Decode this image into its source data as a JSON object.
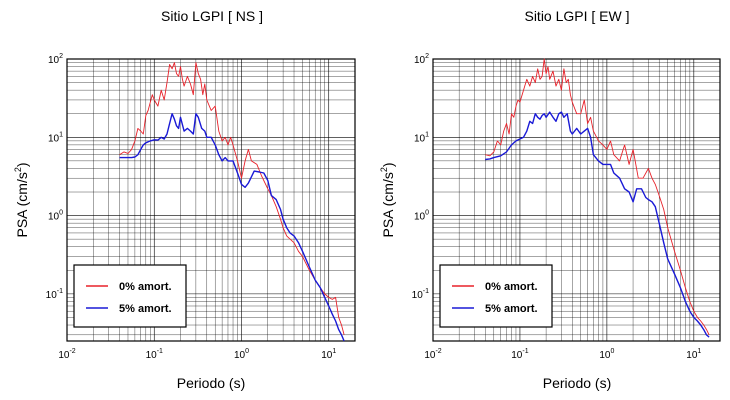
{
  "chart_data": [
    {
      "type": "line",
      "title": "Sitio LGPI [ NS ]",
      "xlabel": "Periodo (s)",
      "ylabel_prefix": "PSA (cm/s",
      "ylabel_exp": "2",
      "ylabel_suffix": ")",
      "xscale": "log",
      "yscale": "log",
      "xlim": [
        0.01,
        20
      ],
      "ylim": [
        0.025,
        100
      ],
      "grid": true,
      "legend_position": "lower-left",
      "x_ticks": [
        {
          "base": "10",
          "exp": "-2",
          "value": 0.01
        },
        {
          "base": "10",
          "exp": "-1",
          "value": 0.1
        },
        {
          "base": "10",
          "exp": "0",
          "value": 1
        },
        {
          "base": "10",
          "exp": "1",
          "value": 10
        }
      ],
      "y_ticks": [
        {
          "base": "10",
          "exp": "-1",
          "value": 0.1
        },
        {
          "base": "10",
          "exp": "0",
          "value": 1
        },
        {
          "base": "10",
          "exp": "1",
          "value": 10
        },
        {
          "base": "10",
          "exp": "2",
          "value": 100
        }
      ],
      "series": [
        {
          "name": "0% amort.",
          "color": "#e8222a",
          "x": [
            0.04,
            0.045,
            0.05,
            0.055,
            0.06,
            0.065,
            0.07,
            0.075,
            0.08,
            0.085,
            0.09,
            0.095,
            0.1,
            0.11,
            0.12,
            0.13,
            0.14,
            0.15,
            0.16,
            0.17,
            0.18,
            0.19,
            0.2,
            0.21,
            0.22,
            0.24,
            0.26,
            0.28,
            0.3,
            0.32,
            0.34,
            0.36,
            0.38,
            0.4,
            0.45,
            0.5,
            0.55,
            0.6,
            0.65,
            0.7,
            0.75,
            0.8,
            0.9,
            1.0,
            1.1,
            1.2,
            1.3,
            1.5,
            1.7,
            2.0,
            2.2,
            2.5,
            2.8,
            3.0,
            3.3,
            3.6,
            4.0,
            4.5,
            5,
            6,
            7,
            8,
            9,
            10,
            11,
            12,
            13,
            14,
            15
          ],
          "y": [
            6,
            6.5,
            6.2,
            7,
            9,
            13,
            12,
            11,
            19,
            22,
            28,
            35,
            30,
            25,
            40,
            30,
            50,
            85,
            75,
            90,
            65,
            60,
            80,
            55,
            45,
            60,
            48,
            35,
            90,
            65,
            55,
            35,
            48,
            30,
            22,
            25,
            12,
            9,
            10,
            8,
            10,
            8,
            5,
            3,
            5,
            7,
            5,
            4.5,
            3.2,
            2.2,
            1.8,
            1.3,
            0.9,
            0.7,
            0.55,
            0.5,
            0.45,
            0.35,
            0.3,
            0.2,
            0.15,
            0.12,
            0.1,
            0.09,
            0.085,
            0.09,
            0.05,
            0.04,
            0.03
          ]
        },
        {
          "name": "5% amort.",
          "color": "#1a1ad6",
          "x": [
            0.04,
            0.045,
            0.05,
            0.055,
            0.06,
            0.065,
            0.07,
            0.075,
            0.08,
            0.09,
            0.1,
            0.11,
            0.12,
            0.13,
            0.14,
            0.15,
            0.16,
            0.17,
            0.18,
            0.19,
            0.2,
            0.22,
            0.24,
            0.26,
            0.28,
            0.3,
            0.32,
            0.35,
            0.38,
            0.4,
            0.45,
            0.5,
            0.55,
            0.6,
            0.65,
            0.7,
            0.8,
            0.9,
            1.0,
            1.1,
            1.2,
            1.4,
            1.6,
            1.8,
            2.0,
            2.2,
            2.5,
            2.8,
            3.0,
            3.3,
            3.6,
            4.0,
            4.5,
            5,
            6,
            7,
            8,
            9,
            10,
            11,
            12,
            13,
            14,
            15
          ],
          "y": [
            5.5,
            5.5,
            5.5,
            5.5,
            5.6,
            6,
            7,
            8,
            8.5,
            9,
            9.3,
            9.2,
            10,
            9.5,
            11,
            15,
            20,
            17,
            14,
            13,
            18,
            12,
            13,
            12,
            11,
            20,
            18,
            13,
            12,
            10,
            10,
            8,
            6,
            5,
            5.5,
            5,
            5,
            3.5,
            2.5,
            2.3,
            2.6,
            3.7,
            3.6,
            3.5,
            2.8,
            1.8,
            1.6,
            1.2,
            0.9,
            0.7,
            0.6,
            0.55,
            0.45,
            0.35,
            0.22,
            0.15,
            0.12,
            0.09,
            0.07,
            0.055,
            0.045,
            0.035,
            0.03,
            0.025
          ]
        }
      ]
    },
    {
      "type": "line",
      "title": "Sitio LGPI [ EW ]",
      "xlabel": "Periodo (s)",
      "ylabel_prefix": "PSA (cm/s",
      "ylabel_exp": "2",
      "ylabel_suffix": ")",
      "xscale": "log",
      "yscale": "log",
      "xlim": [
        0.01,
        20
      ],
      "ylim": [
        0.025,
        100
      ],
      "grid": true,
      "legend_position": "lower-left",
      "x_ticks": [
        {
          "base": "10",
          "exp": "-2",
          "value": 0.01
        },
        {
          "base": "10",
          "exp": "-1",
          "value": 0.1
        },
        {
          "base": "10",
          "exp": "0",
          "value": 1
        },
        {
          "base": "10",
          "exp": "1",
          "value": 10
        }
      ],
      "y_ticks": [
        {
          "base": "10",
          "exp": "-1",
          "value": 0.1
        },
        {
          "base": "10",
          "exp": "0",
          "value": 1
        },
        {
          "base": "10",
          "exp": "1",
          "value": 10
        },
        {
          "base": "10",
          "exp": "2",
          "value": 100
        }
      ],
      "series": [
        {
          "name": "0% amort.",
          "color": "#e8222a",
          "x": [
            0.04,
            0.045,
            0.05,
            0.055,
            0.06,
            0.065,
            0.07,
            0.075,
            0.08,
            0.085,
            0.09,
            0.095,
            0.1,
            0.11,
            0.12,
            0.13,
            0.14,
            0.15,
            0.16,
            0.17,
            0.18,
            0.19,
            0.2,
            0.21,
            0.22,
            0.24,
            0.26,
            0.28,
            0.3,
            0.32,
            0.34,
            0.36,
            0.38,
            0.4,
            0.45,
            0.5,
            0.55,
            0.6,
            0.65,
            0.7,
            0.8,
            0.9,
            1.0,
            1.1,
            1.2,
            1.4,
            1.6,
            1.8,
            2.0,
            2.3,
            2.6,
            3.0,
            3.3,
            3.6,
            4.0,
            4.5,
            5,
            6,
            7,
            8,
            9,
            10,
            11,
            12,
            13,
            14,
            15
          ],
          "y": [
            6,
            5.8,
            6.5,
            9,
            8,
            12,
            15,
            11,
            20,
            18,
            25,
            30,
            28,
            40,
            55,
            45,
            60,
            50,
            75,
            55,
            60,
            100,
            65,
            80,
            55,
            70,
            45,
            55,
            40,
            75,
            50,
            55,
            35,
            28,
            20,
            20,
            30,
            15,
            18,
            12,
            9,
            8,
            7,
            9,
            6,
            5,
            8,
            4.5,
            7,
            3,
            3,
            4,
            3,
            2.5,
            1.8,
            1.2,
            0.7,
            0.35,
            0.2,
            0.12,
            0.08,
            0.06,
            0.05,
            0.045,
            0.04,
            0.035,
            0.03
          ]
        },
        {
          "name": "5% amort.",
          "color": "#1a1ad6",
          "x": [
            0.04,
            0.045,
            0.05,
            0.06,
            0.07,
            0.08,
            0.09,
            0.1,
            0.11,
            0.12,
            0.13,
            0.14,
            0.15,
            0.16,
            0.17,
            0.18,
            0.19,
            0.2,
            0.22,
            0.24,
            0.26,
            0.28,
            0.3,
            0.32,
            0.35,
            0.38,
            0.4,
            0.45,
            0.5,
            0.55,
            0.6,
            0.65,
            0.7,
            0.8,
            0.9,
            1.0,
            1.1,
            1.2,
            1.4,
            1.6,
            1.8,
            2.0,
            2.2,
            2.5,
            2.8,
            3.0,
            3.3,
            3.6,
            4.0,
            4.5,
            5,
            6,
            7,
            8,
            9,
            10,
            11,
            12,
            13,
            14,
            15
          ],
          "y": [
            5.2,
            5.3,
            5.5,
            5.8,
            6.5,
            8,
            9,
            9.5,
            10,
            12,
            16,
            15,
            20,
            18,
            17,
            19,
            20,
            18,
            21,
            18,
            16,
            20,
            21,
            18,
            20,
            12,
            11,
            13,
            11,
            12,
            13,
            10,
            6,
            5,
            4.5,
            4.5,
            4.5,
            3.5,
            3,
            2.2,
            2,
            1.5,
            2.2,
            2.2,
            1.7,
            1.6,
            1.5,
            1.3,
            0.8,
            0.45,
            0.28,
            0.18,
            0.12,
            0.08,
            0.06,
            0.05,
            0.045,
            0.04,
            0.035,
            0.03,
            0.028
          ]
        }
      ]
    }
  ]
}
